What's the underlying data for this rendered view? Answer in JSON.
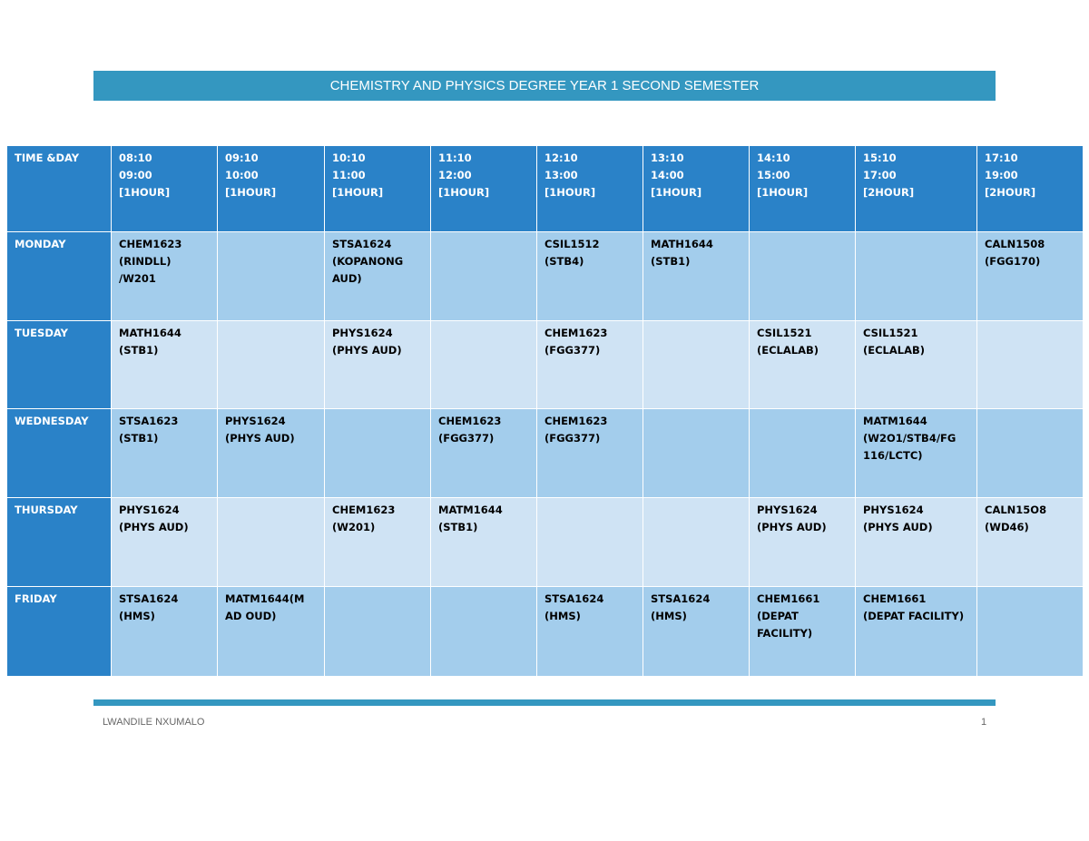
{
  "header": {
    "title": "CHEMISTRY AND PHYSICS DEGREE YEAR 1 SECOND SEMESTER"
  },
  "table": {
    "columns": [
      [
        "TIME &DAY"
      ],
      [
        "08:10",
        "09:00",
        "[1HOUR]"
      ],
      [
        "09:10",
        "10:00",
        "[1HOUR]"
      ],
      [
        "10:10",
        "11:00",
        "[1HOUR]"
      ],
      [
        "11:10",
        "12:00",
        "[1HOUR]"
      ],
      [
        "12:10",
        "13:00",
        "[1HOUR]"
      ],
      [
        "13:10",
        "14:00",
        "[1HOUR]"
      ],
      [
        "14:10",
        "15:00",
        "[1HOUR]"
      ],
      [
        "15:10",
        "17:00",
        "[2HOUR]"
      ],
      [
        "17:10",
        "19:00",
        "[2HOUR]"
      ]
    ],
    "rows": [
      {
        "day": "MONDAY",
        "cells": [
          [
            "CHEM1623",
            "(RINDLL)",
            "/W201"
          ],
          [],
          [
            "STSA1624",
            "(KOPANONG",
            "AUD)"
          ],
          [],
          [
            "CSIL1512",
            "(STB4)"
          ],
          [
            "MATH1644",
            "(STB1)"
          ],
          [],
          [],
          [
            "CALN1508",
            "(FGG170)"
          ]
        ]
      },
      {
        "day": "TUESDAY",
        "cells": [
          [
            "MATH1644",
            "(STB1)"
          ],
          [],
          [
            "PHYS1624",
            "(PHYS AUD)"
          ],
          [],
          [
            "CHEM1623",
            "(FGG377)"
          ],
          [],
          [
            "CSIL1521",
            "(ECLALAB)"
          ],
          [
            "CSIL1521",
            "(ECLALAB)"
          ],
          []
        ]
      },
      {
        "day": "WEDNESDAY",
        "cells": [
          [
            "STSA1623",
            "(STB1)"
          ],
          [
            "PHYS1624",
            "(PHYS AUD)"
          ],
          [],
          [
            "CHEM1623",
            "(FGG377)"
          ],
          [
            "CHEM1623",
            "(FGG377)"
          ],
          [],
          [],
          [
            "MATM1644",
            "(W2O1/STB4/FG",
            "116/LCTC)"
          ],
          []
        ]
      },
      {
        "day": "THURSDAY",
        "cells": [
          [
            "PHYS1624",
            "(PHYS AUD)"
          ],
          [],
          [
            "CHEM1623",
            "(W201)"
          ],
          [
            "MATM1644",
            "(STB1)"
          ],
          [],
          [],
          [
            "PHYS1624",
            "(PHYS AUD)"
          ],
          [
            "PHYS1624",
            "(PHYS AUD)"
          ],
          [
            "CALN15O8",
            "(WD46)"
          ]
        ]
      },
      {
        "day": "FRIDAY",
        "cells": [
          [
            "STSA1624",
            "(HMS)"
          ],
          [
            "MATM1644(M",
            "AD OUD)"
          ],
          [],
          [],
          [
            "STSA1624",
            "(HMS)"
          ],
          [
            "STSA1624",
            "(HMS)"
          ],
          [
            "CHEM1661",
            "(DEPAT",
            "FACILITY)"
          ],
          [
            "CHEM1661",
            "(DEPAT FACILITY)"
          ],
          []
        ]
      }
    ]
  },
  "footer": {
    "author": "LWANDILE NXUMALO",
    "page": "1"
  }
}
